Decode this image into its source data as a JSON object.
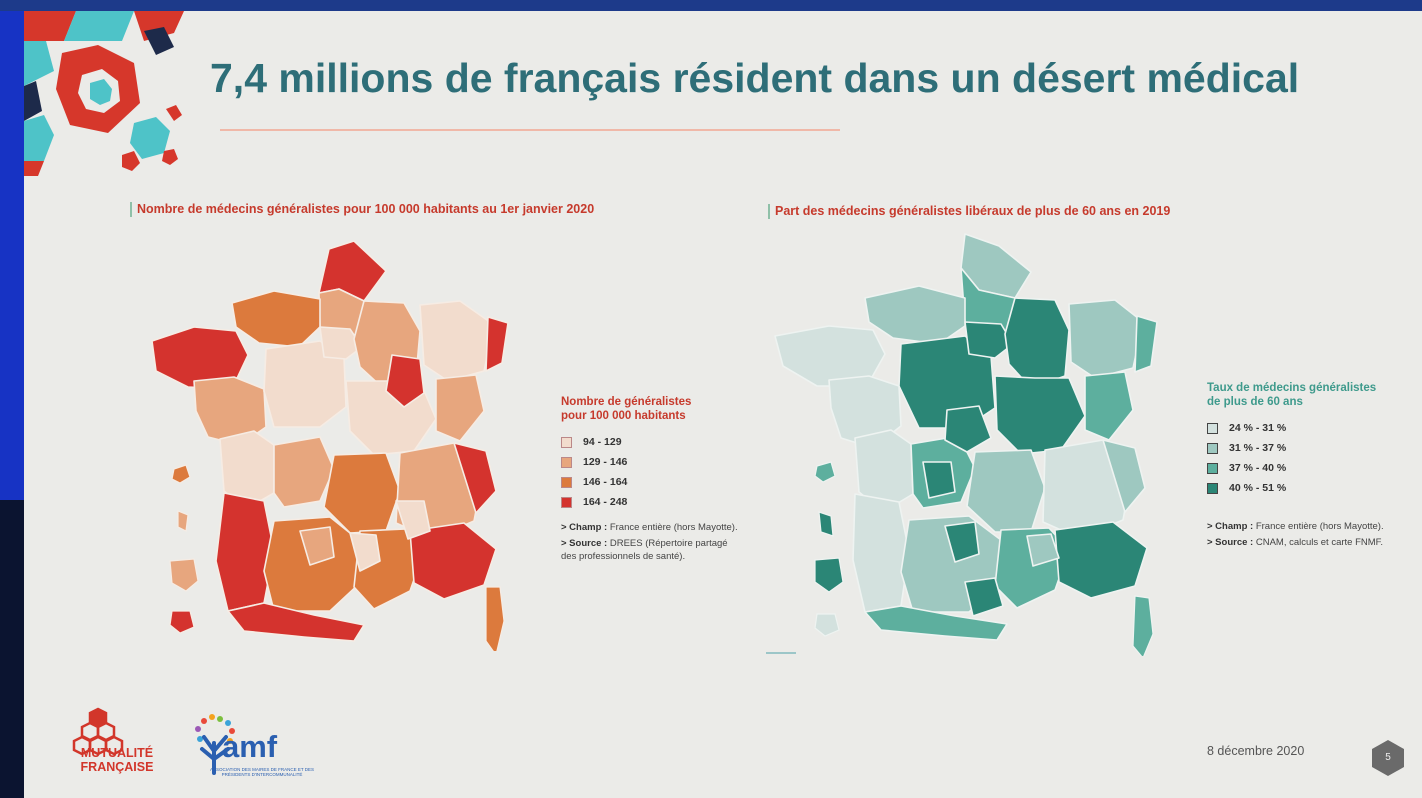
{
  "slide": {
    "title": "7,4 millions de français résident dans un désert médical",
    "date": "8 décembre 2020",
    "page_number": "5"
  },
  "map_left": {
    "title": "Nombre de médecins généralistes pour 100 000 habitants au 1er janvier 2020",
    "legend_title_line1": "Nombre de généralistes",
    "legend_title_line2": "pour 100 000 habitants",
    "classes": [
      {
        "label": "94 - 129",
        "color": "#f2dccd"
      },
      {
        "label": "129 - 146",
        "color": "#e7a67e"
      },
      {
        "label": "146 - 164",
        "color": "#dc7a3d"
      },
      {
        "label": "164 - 248",
        "color": "#d4332e"
      }
    ],
    "champ_label": "> Champ :",
    "champ_text": "France entière (hors Mayotte).",
    "source_label": "> Source :",
    "source_text": "DREES (Répertoire partagé des professionnels de santé)."
  },
  "map_right": {
    "title": "Part des médecins généralistes libéraux de plus de 60 ans en 2019",
    "legend_title_line1": "Taux de médecins généralistes",
    "legend_title_line2": "de plus de 60 ans",
    "classes": [
      {
        "label": "24 % - 31 %",
        "color": "#d3e1de"
      },
      {
        "label": "31 % - 37 %",
        "color": "#9ec8c0"
      },
      {
        "label": "37 % - 40 %",
        "color": "#5daf9e"
      },
      {
        "label": "40 % - 51 %",
        "color": "#2b8676"
      }
    ],
    "champ_label": "> Champ :",
    "champ_text": "France entière (hors Mayotte).",
    "source_label": "> Source :",
    "source_text": "CNAM, calculs et carte FNMF."
  },
  "logos": {
    "mutualite_line1": "MUTUALITÉ",
    "mutualite_line2": "FRANÇAISE",
    "amf": "amf",
    "amf_sub": "ASSOCIATION DES MAIRES DE FRANCE ET DES PRÉSIDENTS D'INTERCOMMUNALITÉ"
  },
  "colors": {
    "title": "#2e6e78",
    "accent_red": "#c63a2c",
    "accent_teal": "#3e9a8c",
    "blue_logo": "#2a5fb0"
  }
}
